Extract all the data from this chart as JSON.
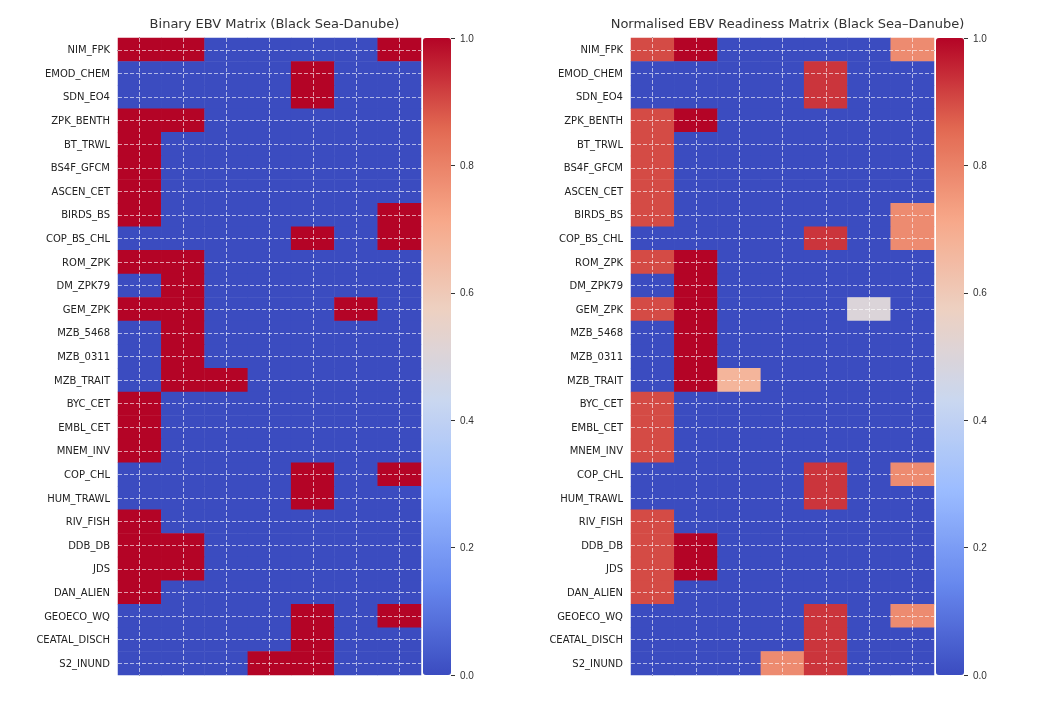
{
  "chart_data": [
    {
      "type": "heatmap",
      "title": "Binary EBV Matrix (Black Sea-Danube)",
      "categories": [
        null,
        null,
        null,
        null,
        null,
        null,
        null
      ],
      "y_categories": [
        "NIM_FPK",
        "EMOD_CHEM",
        "SDN_EO4",
        "ZPK_BENTH",
        "BT_TRWL",
        "BS4F_GFCM",
        "ASCEN_CET",
        "BIRDS_BS",
        "COP_BS_CHL",
        "ROM_ZPK",
        "DM_ZPK79",
        "GEM_ZPK",
        "MZB_5468",
        "MZB_0311",
        "MZB_TRAIT",
        "BYC_CET",
        "EMBL_CET",
        "MNEM_INV",
        "COP_CHL",
        "HUM_TRAWL",
        "RIV_FISH",
        "DDB_DB",
        "JDS",
        "DAN_ALIEN",
        "GEOECO_WQ",
        "CEATAL_DISCH",
        "S2_INUND"
      ],
      "cells": [
        [
          1,
          1,
          0,
          0,
          0,
          0,
          1
        ],
        [
          0,
          0,
          0,
          0,
          1,
          0,
          0
        ],
        [
          0,
          0,
          0,
          0,
          1,
          0,
          0
        ],
        [
          1,
          1,
          0,
          0,
          0,
          0,
          0
        ],
        [
          1,
          0,
          0,
          0,
          0,
          0,
          0
        ],
        [
          1,
          0,
          0,
          0,
          0,
          0,
          0
        ],
        [
          1,
          0,
          0,
          0,
          0,
          0,
          0
        ],
        [
          1,
          0,
          0,
          0,
          0,
          0,
          1
        ],
        [
          0,
          0,
          0,
          0,
          1,
          0,
          1
        ],
        [
          1,
          1,
          0,
          0,
          0,
          0,
          0
        ],
        [
          0,
          1,
          0,
          0,
          0,
          0,
          0
        ],
        [
          1,
          1,
          0,
          0,
          0,
          1,
          0
        ],
        [
          0,
          1,
          0,
          0,
          0,
          0,
          0
        ],
        [
          0,
          1,
          0,
          0,
          0,
          0,
          0
        ],
        [
          0,
          1,
          1,
          0,
          0,
          0,
          0
        ],
        [
          1,
          0,
          0,
          0,
          0,
          0,
          0
        ],
        [
          1,
          0,
          0,
          0,
          0,
          0,
          0
        ],
        [
          1,
          0,
          0,
          0,
          0,
          0,
          0
        ],
        [
          0,
          0,
          0,
          0,
          1,
          0,
          1
        ],
        [
          0,
          0,
          0,
          0,
          1,
          0,
          0
        ],
        [
          1,
          0,
          0,
          0,
          0,
          0,
          0
        ],
        [
          1,
          1,
          0,
          0,
          0,
          0,
          0
        ],
        [
          1,
          1,
          0,
          0,
          0,
          0,
          0
        ],
        [
          1,
          0,
          0,
          0,
          0,
          0,
          0
        ],
        [
          0,
          0,
          0,
          0,
          1,
          0,
          1
        ],
        [
          0,
          0,
          0,
          0,
          1,
          0,
          0
        ],
        [
          0,
          0,
          0,
          1,
          1,
          0,
          0
        ]
      ],
      "clim": [
        0,
        1
      ],
      "cticks": [
        {
          "value": 0,
          "label": "0.0"
        },
        {
          "value": 0.2,
          "label": "0.2"
        },
        {
          "value": 0.4,
          "label": "0.4"
        },
        {
          "value": 0.6,
          "label": "0.6"
        },
        {
          "value": 0.8,
          "label": "0.8"
        },
        {
          "value": 1,
          "label": "1.0"
        }
      ],
      "grid": true
    },
    {
      "type": "heatmap",
      "title": "Normalised EBV Readiness Matrix (Black Sea–Danube)",
      "categories": [
        null,
        null,
        null,
        null,
        null,
        null,
        null
      ],
      "y_categories": [
        "NIM_FPK",
        "EMOD_CHEM",
        "SDN_EO4",
        "ZPK_BENTH",
        "BT_TRWL",
        "BS4F_GFCM",
        "ASCEN_CET",
        "BIRDS_BS",
        "COP_BS_CHL",
        "ROM_ZPK",
        "DM_ZPK79",
        "GEM_ZPK",
        "MZB_5468",
        "MZB_0311",
        "MZB_TRAIT",
        "BYC_CET",
        "EMBL_CET",
        "MNEM_INV",
        "COP_CHL",
        "HUM_TRAWL",
        "RIV_FISH",
        "DDB_DB",
        "JDS",
        "DAN_ALIEN",
        "GEOECO_WQ",
        "CEATAL_DISCH",
        "S2_INUND"
      ],
      "cells": [
        [
          0.9,
          1,
          0,
          0,
          0,
          0,
          0.78
        ],
        [
          0,
          0,
          0,
          0,
          0.93,
          0,
          0
        ],
        [
          0,
          0,
          0,
          0,
          0.93,
          0,
          0
        ],
        [
          0.9,
          1,
          0,
          0,
          0,
          0,
          0
        ],
        [
          0.9,
          0,
          0,
          0,
          0,
          0,
          0
        ],
        [
          0.9,
          0,
          0,
          0,
          0,
          0,
          0
        ],
        [
          0.9,
          0,
          0,
          0,
          0,
          0,
          0
        ],
        [
          0.9,
          0,
          0,
          0,
          0,
          0,
          0.78
        ],
        [
          0,
          0,
          0,
          0,
          0.93,
          0,
          0.78
        ],
        [
          0.9,
          1,
          0,
          0,
          0,
          0,
          0
        ],
        [
          0,
          1,
          0,
          0,
          0,
          0,
          0
        ],
        [
          0.9,
          1,
          0,
          0,
          0,
          0.5,
          0
        ],
        [
          0,
          1,
          0,
          0,
          0,
          0,
          0
        ],
        [
          0,
          1,
          0,
          0,
          0,
          0,
          0
        ],
        [
          0,
          1,
          0.67,
          0,
          0,
          0,
          0
        ],
        [
          0.9,
          0,
          0,
          0,
          0,
          0,
          0
        ],
        [
          0.9,
          0,
          0,
          0,
          0,
          0,
          0
        ],
        [
          0.9,
          0,
          0,
          0,
          0,
          0,
          0
        ],
        [
          0,
          0,
          0,
          0,
          0.93,
          0,
          0.78
        ],
        [
          0,
          0,
          0,
          0,
          0.93,
          0,
          0
        ],
        [
          0.9,
          0,
          0,
          0,
          0,
          0,
          0
        ],
        [
          0.9,
          1,
          0,
          0,
          0,
          0,
          0
        ],
        [
          0.9,
          1,
          0,
          0,
          0,
          0,
          0
        ],
        [
          0.9,
          0,
          0,
          0,
          0,
          0,
          0
        ],
        [
          0,
          0,
          0,
          0,
          0.93,
          0,
          0.78
        ],
        [
          0,
          0,
          0,
          0,
          0.93,
          0,
          0
        ],
        [
          0,
          0,
          0,
          0.78,
          0.93,
          0,
          0
        ]
      ],
      "clim": [
        0,
        1
      ],
      "cticks": [
        {
          "value": 0,
          "label": "0.0"
        },
        {
          "value": 0.2,
          "label": "0.2"
        },
        {
          "value": 0.4,
          "label": "0.4"
        },
        {
          "value": 0.6,
          "label": "0.6"
        },
        {
          "value": 0.8,
          "label": "0.8"
        },
        {
          "value": 1,
          "label": "1.0"
        }
      ],
      "grid": true
    }
  ]
}
